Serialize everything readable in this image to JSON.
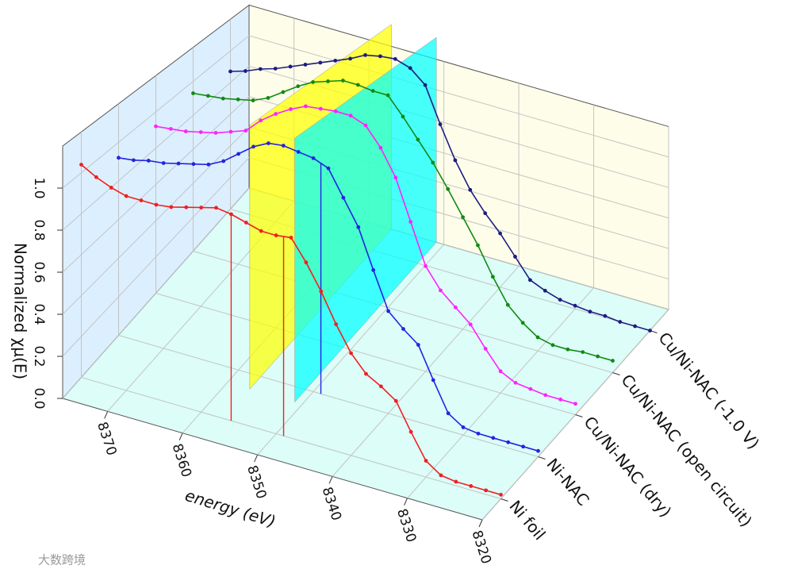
{
  "chart_data": {
    "type": "waterfall3d",
    "x_label": "energy (eV)",
    "y_label": "Normalized χμ(E)",
    "watermark": "大数跨境",
    "xlim": [
      8376,
      8320
    ],
    "ylim": [
      0,
      1.2
    ],
    "xticks": [
      8370,
      8360,
      8350,
      8340,
      8330,
      8320
    ],
    "yticks": [
      {
        "value": 0,
        "label": "0.0"
      },
      0.2,
      0.4,
      0.6,
      0.8,
      {
        "value": 1,
        "label": "1.0"
      }
    ],
    "grid": true,
    "wall_colors": {
      "left": "#dcefff",
      "back": "#fdfde9",
      "floor": "#dcfdf8"
    },
    "planes": [
      {
        "x": 8357,
        "color": "#ffff00"
      },
      {
        "x": 8351,
        "color": "#00ffff"
      }
    ],
    "categories": [
      "Ni foil",
      "Ni-NAC",
      "Cu/Ni-NAC (dry)",
      "Cu/Ni-NAC (open circuit)",
      "Cu/Ni-NAC (-1.0 V)"
    ],
    "x": [
      8376,
      8374,
      8372,
      8370,
      8368,
      8366,
      8364,
      8362,
      8360,
      8358,
      8356,
      8354,
      8352,
      8350,
      8348,
      8346,
      8344,
      8342,
      8340,
      8338,
      8336,
      8334,
      8332,
      8330,
      8328,
      8326,
      8324,
      8322,
      8320
    ],
    "series": [
      {
        "name": "Ni foil",
        "color": "#f02020",
        "drop_lines": [
          8356,
          8349
        ],
        "values": [
          1.04,
          1.0,
          0.97,
          0.95,
          0.95,
          0.95,
          0.96,
          0.98,
          1.0,
          1.02,
          1.01,
          0.99,
          0.97,
          0.97,
          0.98,
          0.88,
          0.76,
          0.62,
          0.5,
          0.42,
          0.38,
          0.33,
          0.2,
          0.08,
          0.03,
          0.02,
          0.02,
          0.02,
          0.02
        ]
      },
      {
        "name": "Ni-NAC",
        "color": "#2424e0",
        "drop_lines": [
          8349
        ],
        "values": [
          0.92,
          0.93,
          0.95,
          0.96,
          0.98,
          1.0,
          1.02,
          1.06,
          1.12,
          1.18,
          1.22,
          1.23,
          1.22,
          1.21,
          1.18,
          1.05,
          0.92,
          0.72,
          0.53,
          0.46,
          0.4,
          0.24,
          0.09,
          0.04,
          0.03,
          0.03,
          0.03,
          0.03,
          0.03
        ]
      },
      {
        "name": "Cu/Ni-NAC (dry)",
        "color": "#ff22ff",
        "values": [
          0.92,
          0.93,
          0.94,
          0.96,
          0.98,
          1.01,
          1.04,
          1.12,
          1.18,
          1.23,
          1.27,
          1.28,
          1.29,
          1.29,
          1.26,
          1.16,
          1.02,
          0.8,
          0.58,
          0.47,
          0.4,
          0.33,
          0.22,
          0.12,
          0.08,
          0.07,
          0.06,
          0.06,
          0.06
        ]
      },
      {
        "name": "Cu/Ni-NAC (open circuit)",
        "color": "#118a11",
        "values": [
          0.93,
          0.94,
          0.95,
          0.97,
          0.99,
          1.03,
          1.09,
          1.15,
          1.2,
          1.23,
          1.26,
          1.26,
          1.25,
          1.25,
          1.15,
          1.04,
          0.93,
          0.8,
          0.66,
          0.52,
          0.36,
          0.22,
          0.14,
          0.08,
          0.06,
          0.06,
          0.07,
          0.07,
          0.07
        ]
      },
      {
        "name": "Cu/Ni-NAC (-1.0 V)",
        "color": "#1c1c82",
        "values": [
          0.87,
          0.9,
          0.94,
          0.97,
          1.01,
          1.05,
          1.09,
          1.13,
          1.17,
          1.22,
          1.24,
          1.25,
          1.22,
          1.14,
          0.92,
          0.72,
          0.56,
          0.44,
          0.34,
          0.22,
          0.1,
          0.06,
          0.03,
          0.02,
          0.01,
          0.01,
          0,
          0,
          0
        ]
      }
    ]
  }
}
